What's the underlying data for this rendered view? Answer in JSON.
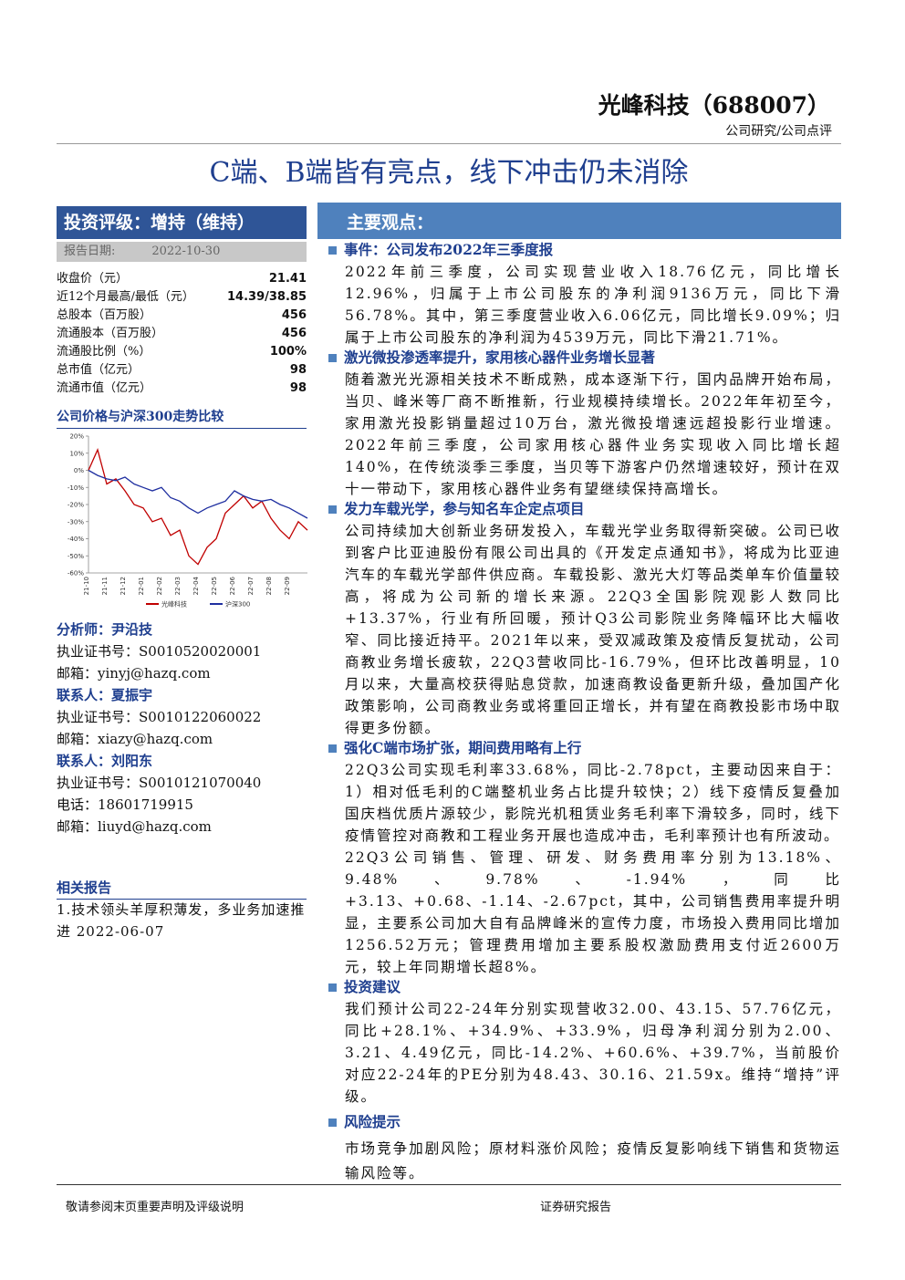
{
  "header": {
    "company": "光峰科技（688007）",
    "category": "公司研究/公司点评"
  },
  "title": "C端、B端皆有亮点，线下冲击仍未消除",
  "rating": {
    "label": "投资评级：增持（维持）",
    "date_label": "报告日期:",
    "date": "2022-10-30"
  },
  "stock_table": {
    "rows": [
      [
        "收盘价（元）",
        "21.41"
      ],
      [
        "近12个月最高/最低（元）",
        "14.39/38.85"
      ],
      [
        "总股本（百万股）",
        "456"
      ],
      [
        "流通股本（百万股）",
        "456"
      ],
      [
        "流通股比例（%）",
        "100%"
      ],
      [
        "总市值（亿元）",
        "98"
      ],
      [
        "流通市值（亿元）",
        "98"
      ]
    ]
  },
  "chart_data": {
    "type": "line",
    "title": "公司价格与沪深300走势比较",
    "categories": [
      "21-10",
      null,
      "21-11",
      null,
      "21-12",
      null,
      "22-01",
      null,
      "22-02",
      null,
      "22-03",
      null,
      "22-04",
      null,
      "22-05",
      null,
      "22-06",
      null,
      "22-07",
      null,
      "22-08",
      null,
      "22-09",
      null,
      null
    ],
    "series": [
      {
        "name": "光峰科技",
        "color": "#c00000",
        "values": [
          0,
          12,
          -8,
          -5,
          -12,
          -20,
          -22,
          -30,
          -28,
          -38,
          -35,
          -50,
          -55,
          -45,
          -40,
          -25,
          -20,
          -15,
          -22,
          -18,
          -28,
          -35,
          -40,
          -30,
          -35
        ]
      },
      {
        "name": "沪深300",
        "color": "#1f2fa0",
        "values": [
          0,
          -3,
          -5,
          -6,
          -4,
          -8,
          -10,
          -12,
          -10,
          -16,
          -18,
          -22,
          -25,
          -22,
          -20,
          -18,
          -12,
          -15,
          -17,
          -18,
          -17,
          -20,
          -22,
          -25,
          -28
        ]
      }
    ],
    "ylim": [
      -60,
      20
    ],
    "yticks": [
      {
        "value": 20,
        "label": "20%"
      },
      {
        "value": 10,
        "label": "10%"
      },
      {
        "value": 0,
        "label": "0%"
      },
      {
        "value": -10,
        "label": "-10%"
      },
      {
        "value": -20,
        "label": "-20%"
      },
      {
        "value": -30,
        "label": "-30%"
      },
      {
        "value": -40,
        "label": "-40%"
      },
      {
        "value": -50,
        "label": "-50%"
      },
      {
        "value": -60,
        "label": "-60%"
      }
    ]
  },
  "contacts": [
    {
      "title": "分析师：尹沿技",
      "lines": [
        "执业证书号：S0010520020001",
        "邮箱：yinyj@hazq.com"
      ]
    },
    {
      "title": "联系人：夏振宇",
      "lines": [
        "执业证书号：S0010122060022",
        "邮箱：xiazy@hazq.com"
      ]
    },
    {
      "title": "联系人：刘阳东",
      "lines": [
        "执业证书号：S0010121070040",
        "电话：18601719915",
        "邮箱：liuyd@hazq.com"
      ]
    }
  ],
  "related": {
    "title": "相关报告",
    "items": [
      "1.技术领头羊厚积薄发，多业务加速推进 2022-06-07"
    ]
  },
  "main": {
    "title": "主要观点：",
    "sections": [
      {
        "heading": "事件：公司发布2022年三季度报",
        "paragraphs": [
          "2022年前三季度，公司实现营业收入18.76亿元，同比增长12.96%，归属于上市公司股东的净利润9136万元，同比下滑56.78%。其中，第三季度营业收入6.06亿元，同比增长9.09%；归属于上市公司股东的净利润为4539万元，同比下滑21.71%。"
        ]
      },
      {
        "heading": "激光微投渗透率提升，家用核心器件业务增长显著",
        "paragraphs": [
          "随着激光光源相关技术不断成熟，成本逐渐下行，国内品牌开始布局，当贝、峰米等厂商不断推新，行业规模持续增长。2022年年初至今，家用激光投影销量超过10万台，激光微投增速远超投影行业增速。2022年前三季度，公司家用核心器件业务实现收入同比增长超140%，在传统淡季三季度，当贝等下游客户仍然增速较好，预计在双十一带动下，家用核心器件业务有望继续保持高增长。"
        ]
      },
      {
        "heading": "发力车载光学，参与知名车企定点项目",
        "paragraphs": [
          "公司持续加大创新业务研发投入，车载光学业务取得新突破。公司已收到客户比亚迪股份有限公司出具的《开发定点通知书》，将成为比亚迪汽车的车载光学部件供应商。车载投影、激光大灯等品类单车价值量较高，将成为公司新的增长来源。22Q3全国影院观影人数同比+13.37%，行业有所回暖，预计Q3公司影院业务降幅环比大幅收窄、同比接近持平。2021年以来，受双减政策及疫情反复扰动，公司商教业务增长疲软，22Q3营收同比-16.79%，但环比改善明显，10月以来，大量高校获得贴息贷款，加速商教设备更新升级，叠加国产化政策影响，公司商教业务或将重回正增长，并有望在商教投影市场中取得更多份额。"
        ]
      },
      {
        "heading": "强化C端市场扩张，期间费用略有上行",
        "paragraphs": [
          "22Q3公司实现毛利率33.68%，同比-2.78pct，主要动因来自于：1）相对低毛利的C端整机业务占比提升较快；2）线下疫情反复叠加国庆档优质片源较少，影院光机租赁业务毛利率下滑较多，同时，线下疫情管控对商教和工程业务开展也造成冲击，毛利率预计也有所波动。",
          "22Q3公司销售、管理、研发、财务费用率分别为13.18%、9.48%、9.78%、-1.94%，同比+3.13、+0.68、-1.14、-2.67pct，其中，公司销售费用率提升明显，主要系公司加大自有品牌峰米的宣传力度，市场投入费用同比增加1256.52万元；管理费用增加主要系股权激励费用支付近2600万元，较上年同期增长超8%。"
        ]
      },
      {
        "heading": "投资建议",
        "paragraphs": [
          "我们预计公司22-24年分别实现营收32.00、43.15、57.76亿元，同比+28.1%、+34.9%、+33.9%，归母净利润分别为2.00、3.21、4.49亿元，同比-14.2%、+60.6%、+39.7%，当前股价对应22-24年的PE分别为48.43、30.16、21.59x。维持“增持”评级。"
        ]
      },
      {
        "heading": "风险提示",
        "paragraphs": [
          "市场竞争加剧风险；原材料涨价风险；疫情反复影响线下销售和货物运输风险等。"
        ]
      }
    ]
  },
  "footer": {
    "left": "敬请参阅末页重要声明及评级说明",
    "right": "证券研究报告"
  }
}
